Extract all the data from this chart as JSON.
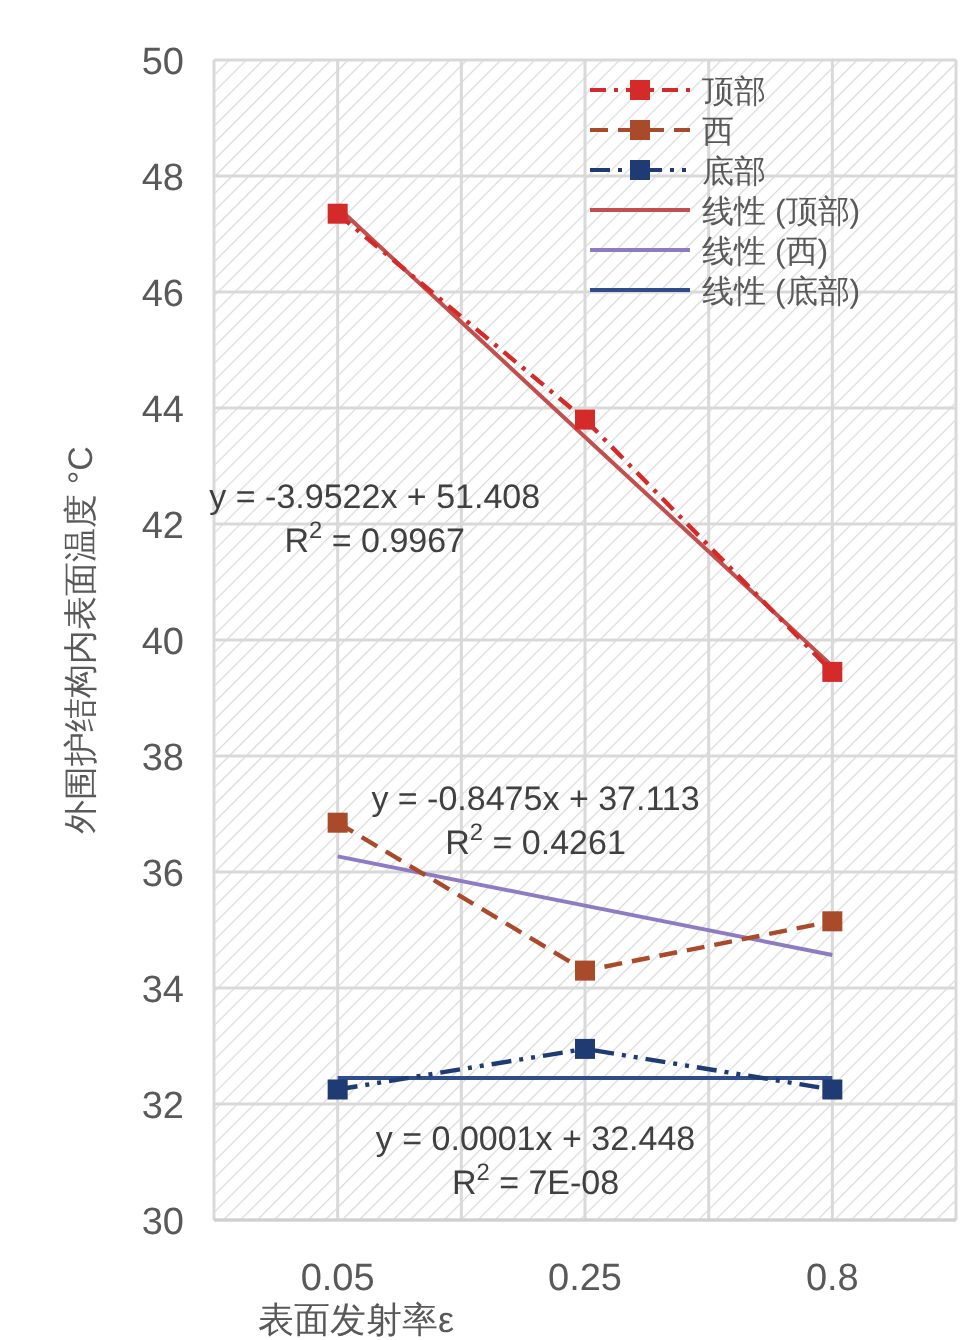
{
  "chart_data": {
    "type": "line",
    "xlabel": "表面发射率ε",
    "ylabel": "外围护结构内表面温度  °C",
    "categories": [
      "0.05",
      "0.25",
      "0.8"
    ],
    "series": [
      {
        "name": "顶部",
        "color": "#d42a2a",
        "values": [
          47.35,
          43.8,
          39.45
        ],
        "marker": "square",
        "line_style": "dashdot"
      },
      {
        "name": "西",
        "color": "#a94a2b",
        "values": [
          36.85,
          34.3,
          35.15
        ],
        "marker": "square",
        "line_style": "dashed"
      },
      {
        "name": "底部",
        "color": "#1f3b73",
        "values": [
          32.25,
          32.95,
          32.25
        ],
        "marker": "square",
        "line_style": "dashdotdot"
      },
      {
        "name": "线性 (顶部)",
        "color": "#c0504d",
        "values": [
          47.46,
          43.5,
          39.55
        ],
        "line_style": "solid"
      },
      {
        "name": "线性 (西)",
        "color": "#8e7cc3",
        "values": [
          36.27,
          35.42,
          34.57
        ],
        "line_style": "solid"
      },
      {
        "name": "线性 (底部)",
        "color": "#2e4d8a",
        "values": [
          32.45,
          32.45,
          32.45
        ],
        "line_style": "solid"
      }
    ],
    "annotations": [
      "y = -3.9522x + 51.408\nR$^{2}$ = 0.9967",
      "y = -0.8475x + 37.113\nR$^{2}$ = 0.4261",
      "y = 0.0001x + 32.448\nR$^{2}$ = 7E-08"
    ],
    "ylim": [
      30,
      50
    ],
    "yticks": [
      30,
      32,
      34,
      36,
      38,
      40,
      42,
      44,
      46,
      48,
      50
    ],
    "grid": true,
    "legend": "top right"
  }
}
